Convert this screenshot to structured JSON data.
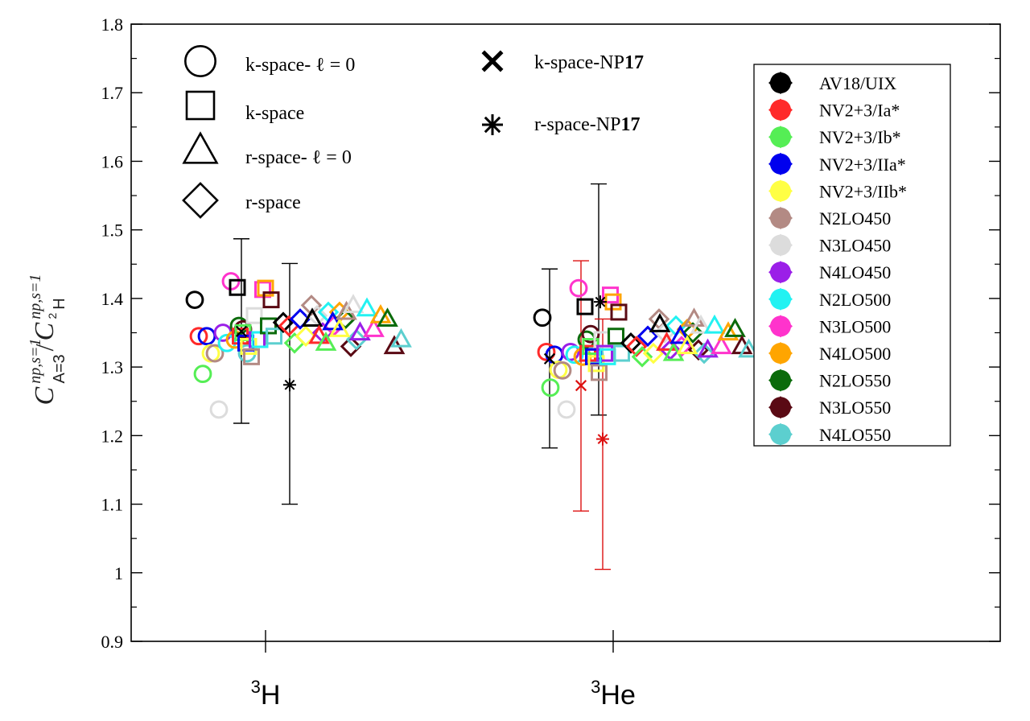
{
  "chart_data": {
    "type": "scatter",
    "title": "",
    "ylabel": {
      "main_left": "C",
      "sup_left": "np,s=1",
      "sub_left": "A=3",
      "slash": "/",
      "main_right": "C",
      "sup_right": "np,s=1",
      "sub_right_sup": "2",
      "sub_right": "H"
    },
    "ylim": [
      0.9,
      1.8
    ],
    "yticks": [
      "0.9",
      "1",
      "1.1",
      "1.2",
      "1.3",
      "1.4",
      "1.5",
      "1.6",
      "1.7",
      "1.8"
    ],
    "categories": [
      {
        "sup": "3",
        "name": "H"
      },
      {
        "sup": "3",
        "name": "He"
      }
    ],
    "method_legend": [
      {
        "marker": "circle",
        "label": "k-space- ℓ = 0"
      },
      {
        "marker": "square",
        "label": "k-space"
      },
      {
        "marker": "triangle",
        "label": "r-space- ℓ = 0"
      },
      {
        "marker": "diamond",
        "label": "r-space"
      },
      {
        "marker": "cross",
        "label": "k-space-NP",
        "bold": "17"
      },
      {
        "marker": "star",
        "label": "r-space-NP",
        "bold": "17"
      }
    ],
    "models": [
      {
        "name": "AV18/UIX",
        "color": "#000000"
      },
      {
        "name": "NV2+3/Ia*",
        "color": "#ff2a2a"
      },
      {
        "name": "NV2+3/Ib*",
        "color": "#55ee55"
      },
      {
        "name": "NV2+3/IIa*",
        "color": "#0000ee"
      },
      {
        "name": "NV2+3/IIb*",
        "color": "#ffff44"
      },
      {
        "name": "N2LO450",
        "color": "#b38a84"
      },
      {
        "name": "N3LO450",
        "color": "#dcdcdc"
      },
      {
        "name": "N4LO450",
        "color": "#9b1fe8"
      },
      {
        "name": "N2LO500",
        "color": "#22f2f2"
      },
      {
        "name": "N3LO500",
        "color": "#ff33cc"
      },
      {
        "name": "N4LO500",
        "color": "#ffa500"
      },
      {
        "name": "N2LO550",
        "color": "#0b6b0b"
      },
      {
        "name": "N3LO550",
        "color": "#5a0a14"
      },
      {
        "name": "N4LO550",
        "color": "#5ccfcf"
      }
    ],
    "series": [
      {
        "marker": "circle",
        "values_3H": [
          1.398,
          1.345,
          1.29,
          1.345,
          1.32,
          1.32,
          1.238,
          1.35,
          1.335,
          1.425,
          1.34,
          1.36,
          1.355,
          1.32
        ],
        "values_3He": [
          1.372,
          1.322,
          1.27,
          1.318,
          1.296,
          1.295,
          1.238,
          1.322,
          1.318,
          1.415,
          1.315,
          1.34,
          1.348,
          1.318
        ]
      },
      {
        "marker": "square",
        "values_3H": [
          1.416,
          1.345,
          1.35,
          1.335,
          1.33,
          1.315,
          1.375,
          1.34,
          1.34,
          1.413,
          1.415,
          1.36,
          1.398,
          1.345
        ],
        "values_3He": [
          1.388,
          1.32,
          1.33,
          1.315,
          1.305,
          1.292,
          1.34,
          1.32,
          1.315,
          1.405,
          1.395,
          1.345,
          1.38,
          1.32
        ]
      },
      {
        "marker": "diamond",
        "values_3H": [
          1.365,
          1.36,
          1.335,
          1.37,
          1.345,
          1.39,
          1.375,
          1.35,
          1.38,
          1.36,
          1.38,
          1.37,
          1.33,
          1.34
        ],
        "values_3He": [
          1.335,
          1.33,
          1.315,
          1.345,
          1.32,
          1.37,
          1.35,
          1.325,
          1.36,
          1.33,
          1.355,
          1.35,
          1.325,
          1.32
        ]
      },
      {
        "marker": "triangle",
        "values_3H": [
          1.37,
          1.345,
          1.335,
          1.365,
          1.355,
          1.38,
          1.39,
          1.35,
          1.385,
          1.355,
          1.375,
          1.37,
          1.33,
          1.34
        ],
        "values_3He": [
          1.362,
          1.335,
          1.32,
          1.345,
          1.33,
          1.37,
          1.36,
          1.325,
          1.36,
          1.33,
          1.35,
          1.355,
          1.33,
          1.325
        ]
      }
    ],
    "np17": {
      "k_space": {
        "value_3H": 1.352,
        "err_3H": [
          1.218,
          1.487
        ],
        "value_3He": 1.395,
        "err_3He": [
          1.23,
          1.567
        ],
        "value_3He_red": 1.273,
        "err_3He_red": [
          1.09,
          1.455
        ]
      },
      "r_space": {
        "value_3H": 1.274,
        "err_3H": [
          1.1,
          1.451
        ],
        "value_3He": 1.312,
        "err_3He": [
          1.182,
          1.443
        ],
        "value_3He_red": 1.195,
        "err_3He_red": [
          1.005,
          1.37
        ]
      }
    }
  }
}
